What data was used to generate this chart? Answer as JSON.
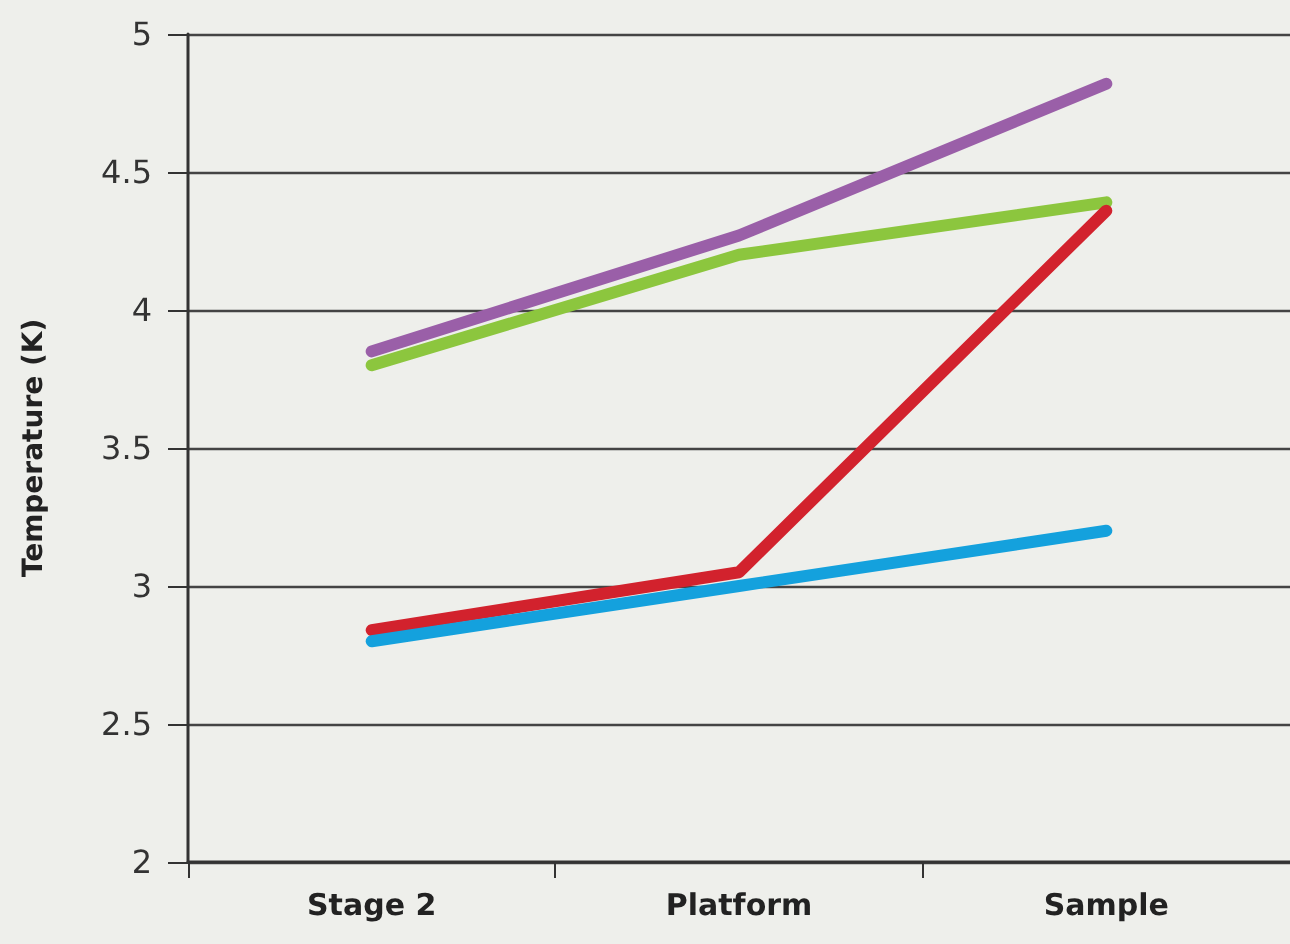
{
  "chart_data": {
    "type": "line",
    "ylabel": "Temperature (K)",
    "categories": [
      "Stage 2",
      "Platform",
      "Sample"
    ],
    "series": [
      {
        "color": "#9a5fa8",
        "values": [
          3.85,
          4.27,
          4.82
        ]
      },
      {
        "color": "#8cc63e",
        "values": [
          3.8,
          4.2,
          4.39
        ]
      },
      {
        "color": "#d2222d",
        "values": [
          2.84,
          3.05,
          4.36
        ]
      },
      {
        "color": "#14a1dd",
        "values": [
          2.8,
          3.0,
          3.2
        ]
      }
    ],
    "ylim": [
      2,
      5
    ],
    "yticks": [
      2,
      2.5,
      3,
      3.5,
      4,
      4.5,
      5
    ],
    "grid": "y",
    "marker": "none",
    "line_style": "solid"
  }
}
